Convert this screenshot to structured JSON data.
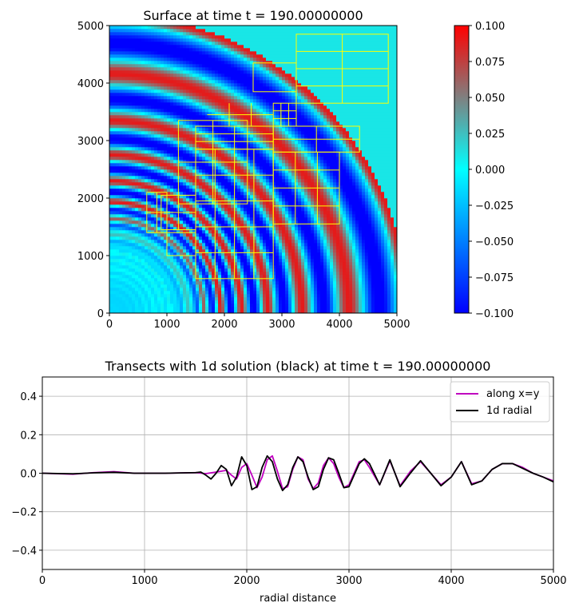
{
  "chart_data": [
    {
      "type": "heatmap",
      "title": "Surface at time t =   190.00000000",
      "xlabel": "",
      "ylabel": "",
      "xlim": [
        0,
        5000
      ],
      "ylim": [
        0,
        5000
      ],
      "x_ticks": [
        "0",
        "1000",
        "2000",
        "3000",
        "4000",
        "5000"
      ],
      "y_ticks": [
        "0",
        "1000",
        "2000",
        "3000",
        "4000",
        "5000"
      ],
      "colormap": [
        "#0000ff",
        "#00ffff",
        "#ff0000"
      ],
      "field": {
        "description_value": "ring pattern of surface elevation centred at origin",
        "wavelength_near": 300,
        "wavelength_far": 700,
        "amplitude": 0.1,
        "front_radius": 1900
      },
      "grid_color": "#ffff00",
      "grid_patches": [
        [
          3250,
          3650,
          4850,
          4850,
          1,
          3
        ],
        [
          2850,
          3250,
          3250,
          3650,
          2,
          2
        ],
        [
          1700,
          3650,
          2850,
          3250,
          2,
          1
        ],
        [
          1500,
          2850,
          2850,
          3250,
          1,
          2
        ],
        [
          2500,
          3850,
          3250,
          4350,
          0,
          0
        ],
        [
          1200,
          1900,
          2400,
          3350,
          1,
          1
        ],
        [
          1500,
          600,
          2850,
          2850,
          3,
          4
        ],
        [
          900,
          1450,
          1500,
          2050,
          1,
          1
        ],
        [
          650,
          1400,
          1000,
          2100,
          1,
          1
        ],
        [
          2850,
          1550,
          4000,
          2800,
          2,
          3
        ],
        [
          2850,
          2800,
          4350,
          3250,
          1,
          1
        ],
        [
          1000,
          1000,
          1500,
          1400,
          0,
          0
        ]
      ],
      "colorbar": {
        "vmin": -0.1,
        "vmax": 0.1,
        "ticks": [
          "0.100",
          "0.075",
          "0.050",
          "0.025",
          "0.000",
          "−0.025",
          "−0.050",
          "−0.075",
          "−0.100"
        ]
      }
    },
    {
      "type": "line",
      "title": "Transects with 1d solution (black) at time t =   190.00000000",
      "xlabel": "radial distance",
      "ylabel": "",
      "xlim": [
        0,
        5000
      ],
      "ylim": [
        -0.5,
        0.5
      ],
      "x_ticks": [
        "0",
        "1000",
        "2000",
        "3000",
        "4000",
        "5000"
      ],
      "y_ticks": [
        "0.4",
        "0.2",
        "0.0",
        "−0.2",
        "−0.4"
      ],
      "grid": true,
      "legend_position": "top-right",
      "series": [
        {
          "name": "along x=y",
          "color": "#bf00bf",
          "x": [
            0,
            300,
            500,
            700,
            900,
            1200,
            1500,
            1600,
            1700,
            1800,
            1850,
            1900,
            1950,
            2000,
            2050,
            2100,
            2150,
            2200,
            2250,
            2300,
            2350,
            2400,
            2450,
            2500,
            2550,
            2600,
            2650,
            2700,
            2750,
            2800,
            2850,
            2900,
            2950,
            3000,
            3050,
            3100,
            3150,
            3200,
            3300,
            3400,
            3500,
            3600,
            3700,
            3800,
            3900,
            4000,
            4100,
            4200,
            4300,
            4400,
            4500,
            4600,
            4700,
            4800,
            4900,
            5000
          ],
          "y": [
            0.0,
            -0.005,
            0.003,
            0.008,
            0.0,
            0.0,
            0.003,
            -0.002,
            0.006,
            0.015,
            -0.01,
            -0.03,
            0.03,
            0.05,
            -0.01,
            -0.075,
            -0.02,
            0.07,
            0.09,
            0.01,
            -0.08,
            -0.07,
            0.02,
            0.085,
            0.07,
            -0.03,
            -0.08,
            -0.05,
            0.04,
            0.08,
            0.05,
            -0.02,
            -0.075,
            -0.06,
            0.0,
            0.06,
            0.07,
            0.03,
            -0.06,
            0.065,
            -0.065,
            0.01,
            0.06,
            0.0,
            -0.06,
            -0.02,
            0.06,
            -0.055,
            -0.04,
            0.02,
            0.05,
            0.05,
            0.03,
            0.0,
            -0.02,
            -0.04
          ]
        },
        {
          "name": "1d radial",
          "color": "#000000",
          "x": [
            0,
            300,
            500,
            700,
            900,
            1200,
            1500,
            1550,
            1600,
            1650,
            1700,
            1750,
            1800,
            1850,
            1900,
            1950,
            2000,
            2050,
            2100,
            2150,
            2200,
            2250,
            2300,
            2350,
            2400,
            2450,
            2500,
            2550,
            2600,
            2650,
            2700,
            2750,
            2800,
            2850,
            2900,
            2950,
            3000,
            3050,
            3100,
            3150,
            3200,
            3300,
            3400,
            3500,
            3600,
            3700,
            3800,
            3900,
            4000,
            4100,
            4200,
            4300,
            4400,
            4500,
            4600,
            4700,
            4800,
            4900,
            5000
          ],
          "y": [
            0.0,
            -0.003,
            0.002,
            0.005,
            0.0,
            0.0,
            0.003,
            0.006,
            -0.01,
            -0.03,
            0.0,
            0.04,
            0.02,
            -0.065,
            -0.02,
            0.085,
            0.04,
            -0.085,
            -0.07,
            0.03,
            0.09,
            0.06,
            -0.03,
            -0.09,
            -0.06,
            0.03,
            0.085,
            0.06,
            -0.02,
            -0.085,
            -0.07,
            0.02,
            0.08,
            0.07,
            0.0,
            -0.075,
            -0.07,
            -0.01,
            0.05,
            0.075,
            0.05,
            -0.06,
            0.07,
            -0.07,
            0.0,
            0.065,
            0.0,
            -0.065,
            -0.02,
            0.06,
            -0.06,
            -0.04,
            0.02,
            0.05,
            0.05,
            0.025,
            0.0,
            -0.02,
            -0.045
          ]
        }
      ]
    }
  ]
}
